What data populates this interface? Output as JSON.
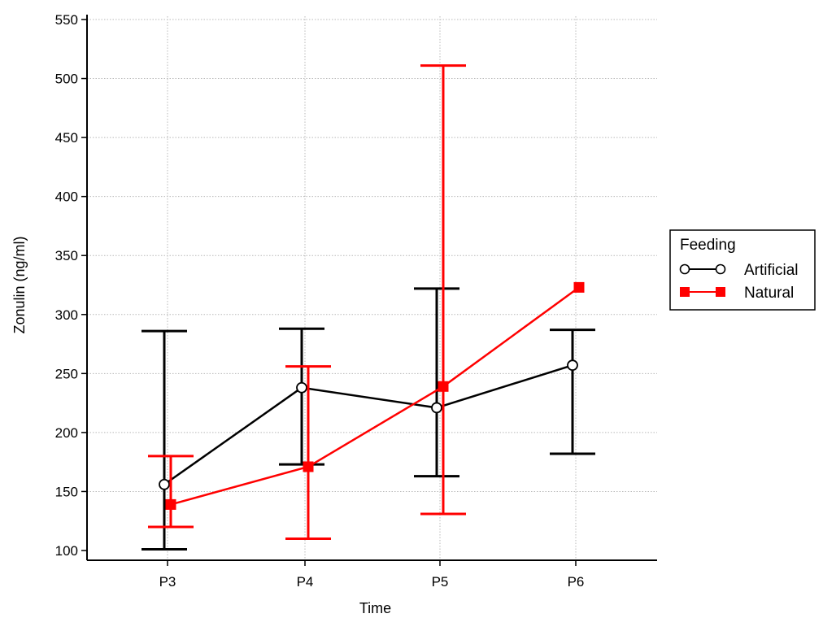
{
  "chart_data": {
    "type": "line",
    "categories": [
      "P3",
      "P4",
      "P5",
      "P6"
    ],
    "xlabel": "Time",
    "ylabel": "Zonulin (ng/ml)",
    "ylim": [
      100,
      550
    ],
    "yticks": [
      100,
      150,
      200,
      250,
      300,
      350,
      400,
      450,
      500,
      550
    ],
    "grid": true,
    "legend_title": "Feeding",
    "legend_position": "right",
    "series": [
      {
        "name": "Artificial",
        "color": "#000000",
        "marker": "open-circle",
        "values": [
          156,
          238,
          221,
          257
        ],
        "error_low": [
          101,
          173,
          163,
          182
        ],
        "error_high": [
          286,
          288,
          322,
          287
        ]
      },
      {
        "name": "Natural",
        "color": "#ff0000",
        "marker": "filled-square",
        "values": [
          139,
          171,
          239,
          323
        ],
        "error_low": [
          120,
          110,
          131,
          null
        ],
        "error_high": [
          180,
          256,
          511,
          null
        ]
      }
    ]
  }
}
